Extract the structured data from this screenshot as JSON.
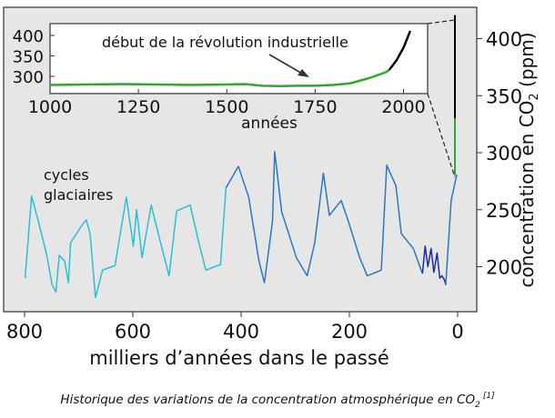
{
  "caption": {
    "text": "Historique des variations de la concentration atmosphérique en CO",
    "sub": "2",
    "ref": "[1]"
  },
  "chart_data": [
    {
      "type": "line",
      "xlabel": "milliers d’années dans le passé",
      "ylabel": {
        "prefix": "concentration en CO",
        "sub": "2",
        "suffix": " (ppm)"
      },
      "xlim": [
        800,
        0
      ],
      "ylim": [
        170,
        415
      ],
      "x_ticks": [
        "800",
        "600",
        "400",
        "200",
        "0"
      ],
      "x_tick_values": [
        800,
        600,
        400,
        200,
        0
      ],
      "y_ticks": [
        "200",
        "250",
        "300",
        "350",
        "400"
      ],
      "y_tick_values": [
        200,
        250,
        300,
        350,
        400
      ],
      "annotation": {
        "line1": "cycles",
        "line2": "glaciaires"
      },
      "grid": false,
      "colors": {
        "old": "#29c0d4",
        "mid": "#2a78c0",
        "recent": "#1b2e99",
        "modern_green": "#2fa82f",
        "modern_black": "#000000",
        "background": "#e6e6e6"
      },
      "series": [
        {
          "color_key": "old",
          "x": [
            799,
            787,
            779,
            766,
            759,
            749,
            742,
            736,
            726,
            719,
            715,
            693,
            686,
            679,
            669,
            656,
            633,
            612,
            599,
            593,
            583,
            566,
            553,
            533,
            519,
            494,
            478,
            465,
            438,
            428
          ],
          "y": [
            190,
            262,
            248,
            224,
            210,
            184,
            178,
            210,
            205,
            186,
            221,
            237,
            241,
            229,
            173,
            197,
            201,
            261,
            218,
            250,
            208,
            254,
            229,
            192,
            249,
            254,
            221,
            197,
            202,
            269
          ]
        },
        {
          "color_key": "mid",
          "x": [
            428,
            405,
            386,
            367,
            357,
            342,
            338,
            325,
            312,
            298,
            278,
            264,
            248,
            237,
            215,
            202,
            181,
            167,
            141,
            131,
            114,
            104,
            82,
            65
          ],
          "y": [
            269,
            288,
            261,
            205,
            186,
            240,
            301,
            248,
            229,
            208,
            192,
            221,
            282,
            245,
            258,
            240,
            208,
            192,
            197,
            289,
            271,
            229,
            216,
            194
          ]
        },
        {
          "color_key": "recent",
          "x": [
            65,
            60,
            55,
            49,
            44,
            38,
            33,
            29,
            24,
            22
          ],
          "y": [
            194,
            218,
            200,
            216,
            195,
            212,
            190,
            192,
            188,
            184
          ]
        },
        {
          "color_key": "mid",
          "x": [
            22,
            12,
            2,
            0
          ],
          "y": [
            184,
            258,
            280,
            280
          ]
        }
      ],
      "modern_jump": {
        "green": [
          280,
          330
        ],
        "black": [
          330,
          411
        ]
      }
    },
    {
      "type": "line",
      "xlabel": "années",
      "xlim": [
        1000,
        2020
      ],
      "ylim": [
        270,
        410
      ],
      "x_ticks": [
        "1000",
        "1250",
        "1500",
        "1750",
        "2000"
      ],
      "x_tick_values": [
        1000,
        1250,
        1500,
        1750,
        2000
      ],
      "y_ticks": [
        "400",
        "350",
        "300"
      ],
      "y_tick_values": [
        400,
        350,
        300
      ],
      "annotation": "début de la révolution industrielle",
      "series": [
        {
          "color_key": "modern_green",
          "x": [
            1000,
            1100,
            1200,
            1300,
            1400,
            1500,
            1550,
            1600,
            1650,
            1700,
            1750,
            1800,
            1850,
            1900,
            1950,
            1960
          ],
          "y": [
            279,
            280,
            281,
            280,
            279,
            280,
            281,
            277,
            276,
            277,
            277,
            279,
            283,
            295,
            310,
            316
          ]
        },
        {
          "color_key": "modern_black",
          "x": [
            1960,
            1980,
            2000,
            2019
          ],
          "y": [
            316,
            339,
            370,
            411
          ]
        }
      ]
    }
  ]
}
